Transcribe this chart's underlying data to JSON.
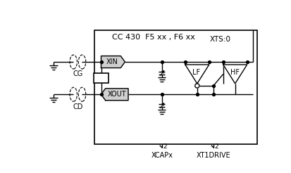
{
  "bg_color": "#ffffff",
  "title": "CC 430  F5 xx , F6 xx",
  "xts_label": "XTS:0",
  "xin_label": "XIN",
  "xout_label": "XOUT",
  "lf_label": "LF",
  "hf_label": "HF",
  "cg_label": "CG",
  "cd_label": "CD",
  "xcap_label": "XCAPx",
  "xt1drive_label": "XT1DRIVE",
  "xcap_num": "2",
  "xt1drive_num": "2",
  "fig_width": 4.13,
  "fig_height": 2.46,
  "dpi": 100
}
